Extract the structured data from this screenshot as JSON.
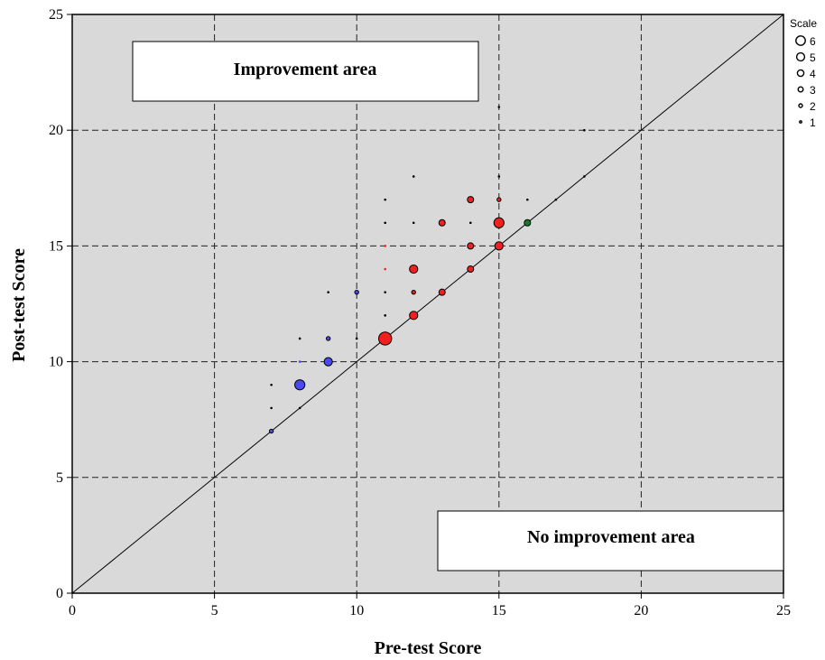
{
  "chart_data": {
    "type": "scatter",
    "xlabel": "Pre-test Score",
    "ylabel": "Post-test Score",
    "xlim": [
      0,
      25
    ],
    "ylim": [
      0,
      25
    ],
    "x_ticks": [
      0,
      5,
      10,
      15,
      20,
      25
    ],
    "y_ticks": [
      0,
      5,
      10,
      15,
      20,
      25
    ],
    "grid": true,
    "background": "#d9d9d9",
    "reference_line": {
      "from": [
        0,
        0
      ],
      "to": [
        25,
        25
      ]
    },
    "annotations": [
      {
        "text": "Improvement area",
        "region": "top-left"
      },
      {
        "text": "No improvement area",
        "region": "bottom-right"
      }
    ],
    "legend": {
      "title": "Scale",
      "position": "top-right",
      "entries": [
        "6",
        "5",
        "4",
        "3",
        "2",
        "1"
      ]
    },
    "colors": {
      "blue": "#4a4af0",
      "red": "#f02020",
      "green": "#1a7a2a",
      "black": "#000000"
    },
    "points": [
      {
        "x": 7,
        "y": 7,
        "size": 2,
        "color": "blue"
      },
      {
        "x": 7,
        "y": 8,
        "size": 1,
        "color": "black"
      },
      {
        "x": 7,
        "y": 9,
        "size": 1,
        "color": "black"
      },
      {
        "x": 8,
        "y": 8,
        "size": 1,
        "color": "black"
      },
      {
        "x": 8,
        "y": 9,
        "size": 5,
        "color": "blue"
      },
      {
        "x": 8,
        "y": 10,
        "size": 1,
        "color": "blue"
      },
      {
        "x": 8,
        "y": 11,
        "size": 1,
        "color": "black"
      },
      {
        "x": 9,
        "y": 10,
        "size": 4,
        "color": "blue"
      },
      {
        "x": 9,
        "y": 11,
        "size": 2,
        "color": "blue"
      },
      {
        "x": 9,
        "y": 13,
        "size": 1,
        "color": "black"
      },
      {
        "x": 10,
        "y": 11,
        "size": 1,
        "color": "black"
      },
      {
        "x": 10,
        "y": 13,
        "size": 2,
        "color": "blue"
      },
      {
        "x": 11,
        "y": 11,
        "size": 6,
        "color": "red"
      },
      {
        "x": 11,
        "y": 12,
        "size": 1,
        "color": "black"
      },
      {
        "x": 11,
        "y": 13,
        "size": 1,
        "color": "black"
      },
      {
        "x": 11,
        "y": 14,
        "size": 1,
        "color": "red"
      },
      {
        "x": 11,
        "y": 15,
        "size": 1,
        "color": "red"
      },
      {
        "x": 11,
        "y": 16,
        "size": 1,
        "color": "black"
      },
      {
        "x": 11,
        "y": 17,
        "size": 1,
        "color": "black"
      },
      {
        "x": 12,
        "y": 12,
        "size": 4,
        "color": "red"
      },
      {
        "x": 12,
        "y": 13,
        "size": 2,
        "color": "red"
      },
      {
        "x": 12,
        "y": 14,
        "size": 4,
        "color": "red"
      },
      {
        "x": 12,
        "y": 16,
        "size": 1,
        "color": "black"
      },
      {
        "x": 12,
        "y": 18,
        "size": 1,
        "color": "black"
      },
      {
        "x": 13,
        "y": 13,
        "size": 3,
        "color": "red"
      },
      {
        "x": 13,
        "y": 16,
        "size": 3,
        "color": "red"
      },
      {
        "x": 14,
        "y": 14,
        "size": 3,
        "color": "red"
      },
      {
        "x": 14,
        "y": 15,
        "size": 3,
        "color": "red"
      },
      {
        "x": 14,
        "y": 16,
        "size": 1,
        "color": "black"
      },
      {
        "x": 14,
        "y": 17,
        "size": 3,
        "color": "red"
      },
      {
        "x": 15,
        "y": 15,
        "size": 4,
        "color": "red"
      },
      {
        "x": 15,
        "y": 16,
        "size": 5,
        "color": "red"
      },
      {
        "x": 15,
        "y": 17,
        "size": 2,
        "color": "red"
      },
      {
        "x": 15,
        "y": 18,
        "size": 1,
        "color": "black"
      },
      {
        "x": 15,
        "y": 21,
        "size": 1,
        "color": "black"
      },
      {
        "x": 16,
        "y": 16,
        "size": 3,
        "color": "green"
      },
      {
        "x": 16,
        "y": 17,
        "size": 1,
        "color": "black"
      },
      {
        "x": 17,
        "y": 17,
        "size": 1,
        "color": "black"
      },
      {
        "x": 18,
        "y": 18,
        "size": 1,
        "color": "black"
      },
      {
        "x": 18,
        "y": 20,
        "size": 1,
        "color": "black"
      }
    ]
  }
}
